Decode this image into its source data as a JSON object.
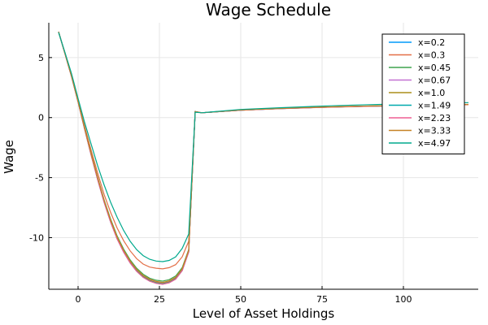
{
  "chart_data": {
    "type": "line",
    "title": "Wage Schedule",
    "xlabel": "Level of Asset Holdings",
    "ylabel": "Wage",
    "xlim": [
      -9,
      123
    ],
    "ylim": [
      -14.3,
      7.9
    ],
    "xticks": [
      0,
      25,
      50,
      75,
      100
    ],
    "yticks": [
      -10,
      -5,
      0,
      5
    ],
    "grid": true,
    "legend_position": "top-right",
    "x": [
      -6,
      -4,
      -2,
      0,
      2,
      4,
      6,
      8,
      10,
      12,
      14,
      16,
      18,
      20,
      22,
      24,
      26,
      28,
      30,
      32,
      34,
      36,
      38,
      50,
      62,
      74,
      86,
      98,
      110,
      120
    ],
    "series": [
      {
        "name": "x=0.2",
        "color": "#009AFA",
        "values": [
          7.15,
          5.3,
          3.4,
          1.3,
          -0.95,
          -3.1,
          -5.15,
          -7.05,
          -8.7,
          -10.1,
          -11.2,
          -12.1,
          -12.8,
          -13.3,
          -13.62,
          -13.8,
          -13.88,
          -13.75,
          -13.45,
          -12.75,
          -11.2,
          0.5,
          0.4,
          0.62,
          0.75,
          0.85,
          0.93,
          0.99,
          1.04,
          1.08
        ]
      },
      {
        "name": "x=0.3",
        "color": "#E36F47",
        "values": [
          7.13,
          5.35,
          3.5,
          1.4,
          -0.7,
          -2.7,
          -4.6,
          -6.4,
          -7.9,
          -9.2,
          -10.25,
          -11.1,
          -11.75,
          -12.2,
          -12.45,
          -12.55,
          -12.6,
          -12.5,
          -12.25,
          -11.6,
          -10.3,
          0.5,
          0.4,
          0.64,
          0.77,
          0.87,
          0.95,
          1.01,
          1.06,
          1.1
        ]
      },
      {
        "name": "x=0.45",
        "color": "#3EA44E",
        "values": [
          7.14,
          5.32,
          3.45,
          1.35,
          -0.85,
          -2.95,
          -4.95,
          -6.85,
          -8.45,
          -9.85,
          -10.95,
          -11.85,
          -12.55,
          -13.05,
          -13.38,
          -13.55,
          -13.62,
          -13.5,
          -13.2,
          -12.5,
          -11.0,
          0.5,
          0.4,
          0.63,
          0.76,
          0.86,
          0.94,
          1.0,
          1.05,
          1.09
        ]
      },
      {
        "name": "x=0.67",
        "color": "#C371D2",
        "values": [
          7.15,
          5.31,
          3.42,
          1.32,
          -0.9,
          -3.05,
          -5.05,
          -6.95,
          -8.6,
          -10.0,
          -11.1,
          -12.0,
          -12.7,
          -13.2,
          -13.52,
          -13.7,
          -13.78,
          -13.65,
          -13.35,
          -12.65,
          -11.1,
          0.5,
          0.4,
          0.62,
          0.75,
          0.85,
          0.93,
          0.99,
          1.04,
          1.08
        ]
      },
      {
        "name": "x=1.0",
        "color": "#AC8D18",
        "values": [
          7.15,
          5.3,
          3.41,
          1.31,
          -0.92,
          -3.08,
          -5.1,
          -7.0,
          -8.65,
          -10.05,
          -11.15,
          -12.05,
          -12.75,
          -13.25,
          -13.57,
          -13.75,
          -13.83,
          -13.7,
          -13.4,
          -12.7,
          -11.15,
          0.5,
          0.4,
          0.62,
          0.75,
          0.85,
          0.93,
          0.99,
          1.04,
          1.08
        ]
      },
      {
        "name": "x=1.49",
        "color": "#00A9AD",
        "values": [
          7.15,
          5.3,
          3.4,
          1.3,
          -0.94,
          -3.1,
          -5.13,
          -7.03,
          -8.68,
          -10.08,
          -11.18,
          -12.08,
          -12.78,
          -13.28,
          -13.6,
          -13.78,
          -13.86,
          -13.73,
          -13.43,
          -12.73,
          -11.18,
          0.5,
          0.4,
          0.62,
          0.75,
          0.85,
          0.93,
          0.99,
          1.04,
          1.08
        ]
      },
      {
        "name": "x=2.23",
        "color": "#ED5E93",
        "values": [
          7.15,
          5.29,
          3.39,
          1.29,
          -0.96,
          -3.12,
          -5.16,
          -7.06,
          -8.71,
          -10.11,
          -11.21,
          -12.11,
          -12.81,
          -13.31,
          -13.63,
          -13.81,
          -13.89,
          -13.76,
          -13.46,
          -12.76,
          -11.21,
          0.5,
          0.4,
          0.61,
          0.74,
          0.84,
          0.92,
          0.98,
          1.03,
          1.07
        ]
      },
      {
        "name": "x=3.33",
        "color": "#C68225",
        "values": [
          7.15,
          5.3,
          3.43,
          1.33,
          -0.88,
          -3.0,
          -5.0,
          -6.9,
          -8.55,
          -9.95,
          -11.05,
          -11.95,
          -12.65,
          -13.15,
          -13.47,
          -13.65,
          -13.73,
          -13.6,
          -13.3,
          -12.6,
          -11.05,
          0.5,
          0.4,
          0.63,
          0.76,
          0.86,
          0.94,
          1.0,
          1.05,
          1.09
        ]
      },
      {
        "name": "x=4.97",
        "color": "#00A98D",
        "values": [
          7.1,
          5.4,
          3.65,
          1.6,
          -0.4,
          -2.2,
          -4.0,
          -5.6,
          -7.05,
          -8.3,
          -9.4,
          -10.3,
          -11.0,
          -11.5,
          -11.8,
          -11.95,
          -12.0,
          -11.9,
          -11.6,
          -10.9,
          -9.7,
          0.45,
          0.4,
          0.68,
          0.82,
          0.95,
          1.05,
          1.13,
          1.2,
          1.25
        ]
      }
    ]
  }
}
